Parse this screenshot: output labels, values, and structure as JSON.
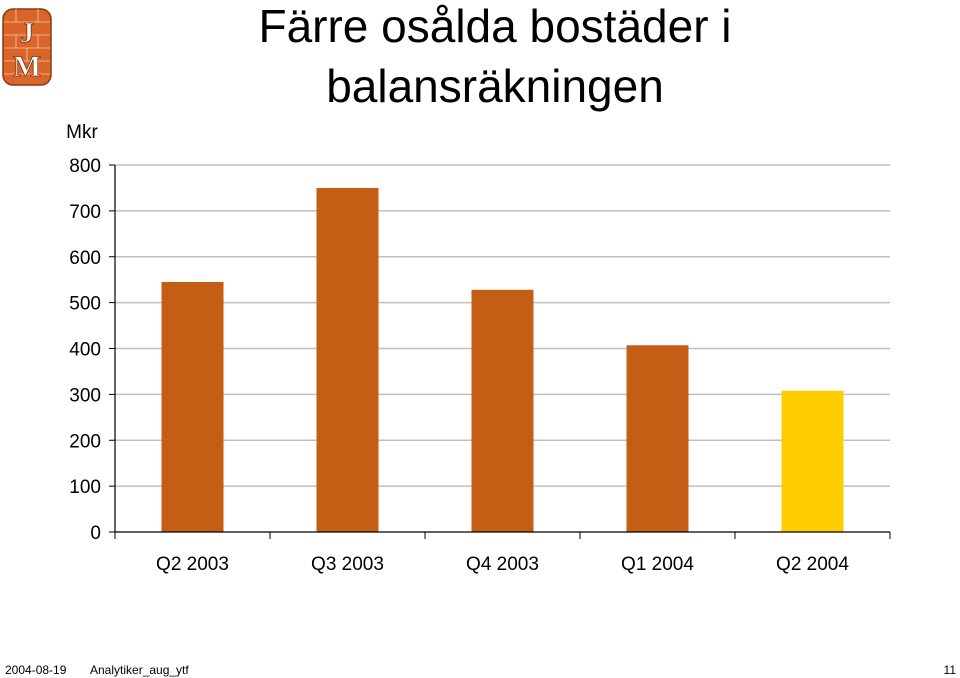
{
  "logo": {
    "text": "JM"
  },
  "title": {
    "line1": "Färre osålda bostäder i",
    "line2": "balansräkningen"
  },
  "footer": {
    "date": "2004-08-19",
    "doc": "Analytiker_aug_ytf",
    "page": "11"
  },
  "colors": {
    "bar": "#C45E14",
    "highlight": "#FFCC00",
    "grid": "#BFBFBF",
    "axis": "#000000"
  },
  "chart_data": {
    "type": "bar",
    "title": "Färre osålda bostäder i balansräkningen",
    "ylabel": "Mkr",
    "xlabel": "",
    "categories": [
      "Q2 2003",
      "Q3 2003",
      "Q4 2003",
      "Q1 2004",
      "Q2 2004"
    ],
    "values": [
      545,
      750,
      528,
      407,
      308
    ],
    "highlight_index": 4,
    "ylim": [
      0,
      800
    ],
    "yticks": [
      0,
      100,
      200,
      300,
      400,
      500,
      600,
      700,
      800
    ],
    "grid": true,
    "legend": "none"
  }
}
